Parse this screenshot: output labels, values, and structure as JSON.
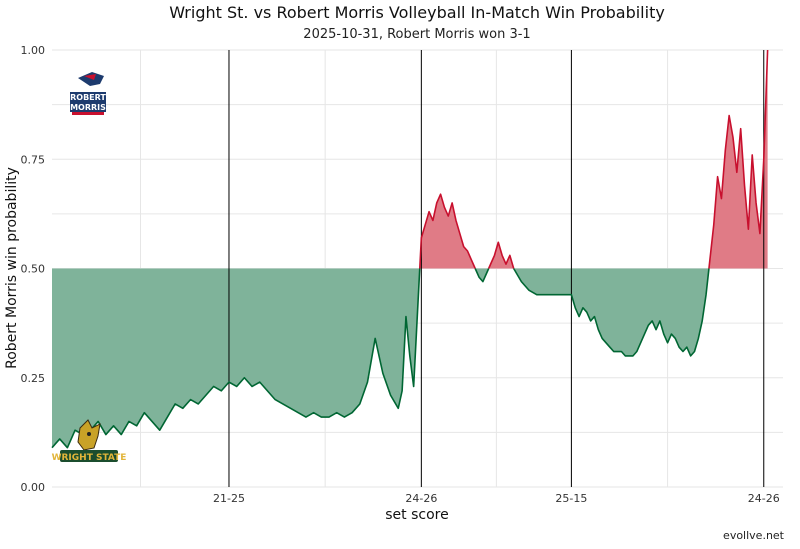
{
  "chart_data": {
    "type": "area",
    "title": "Wright St. vs Robert Morris Volleyball In-Match Win Probability",
    "subtitle": "2025-10-31, Robert Morris won 3-1",
    "xlabel": "set score",
    "ylabel": "Robert Morris win probability",
    "credit": "evollve.net",
    "ylim": [
      0,
      1
    ],
    "y_ticks": [
      "0.00",
      "0.25",
      "0.50",
      "0.75",
      "1.00"
    ],
    "y_tick_values": [
      0,
      0.25,
      0.5,
      0.75,
      1.0
    ],
    "x_range": [
      0,
      190
    ],
    "set_ends": [
      {
        "point": 46,
        "label": "21-25"
      },
      {
        "point": 96,
        "label": "24-26"
      },
      {
        "point": 135,
        "label": "25-15"
      },
      {
        "point": 185,
        "label": "24-26"
      }
    ],
    "baseline": 0.5,
    "logos": {
      "top": "Robert Morris",
      "bottom": "Wright State"
    },
    "colors": {
      "robert_morris": "#c8102e",
      "robert_morris_fill": "#e07b86",
      "wright_state": "#006633",
      "wright_state_fill": "#7fb39a"
    },
    "series": [
      {
        "values": [
          [
            0,
            0.09
          ],
          [
            2,
            0.11
          ],
          [
            4,
            0.09
          ],
          [
            6,
            0.13
          ],
          [
            8,
            0.12
          ],
          [
            10,
            0.13
          ],
          [
            12,
            0.15
          ],
          [
            14,
            0.12
          ],
          [
            16,
            0.14
          ],
          [
            18,
            0.12
          ],
          [
            20,
            0.15
          ],
          [
            22,
            0.14
          ],
          [
            24,
            0.17
          ],
          [
            26,
            0.15
          ],
          [
            28,
            0.13
          ],
          [
            30,
            0.16
          ],
          [
            32,
            0.19
          ],
          [
            34,
            0.18
          ],
          [
            36,
            0.2
          ],
          [
            38,
            0.19
          ],
          [
            40,
            0.21
          ],
          [
            42,
            0.23
          ],
          [
            44,
            0.22
          ],
          [
            46,
            0.24
          ],
          [
            48,
            0.23
          ],
          [
            50,
            0.25
          ],
          [
            52,
            0.23
          ],
          [
            54,
            0.24
          ],
          [
            56,
            0.22
          ],
          [
            58,
            0.2
          ],
          [
            60,
            0.19
          ],
          [
            62,
            0.18
          ],
          [
            64,
            0.17
          ],
          [
            66,
            0.16
          ],
          [
            68,
            0.17
          ],
          [
            70,
            0.16
          ],
          [
            72,
            0.16
          ],
          [
            74,
            0.17
          ],
          [
            76,
            0.16
          ],
          [
            78,
            0.17
          ],
          [
            80,
            0.19
          ],
          [
            82,
            0.24
          ],
          [
            84,
            0.34
          ],
          [
            86,
            0.26
          ],
          [
            88,
            0.21
          ],
          [
            90,
            0.18
          ],
          [
            91,
            0.22
          ],
          [
            92,
            0.39
          ],
          [
            93,
            0.3
          ],
          [
            94,
            0.23
          ],
          [
            95,
            0.4
          ],
          [
            96,
            0.57
          ],
          [
            97,
            0.6
          ],
          [
            98,
            0.63
          ],
          [
            99,
            0.61
          ],
          [
            100,
            0.65
          ],
          [
            101,
            0.67
          ],
          [
            102,
            0.64
          ],
          [
            103,
            0.62
          ],
          [
            104,
            0.65
          ],
          [
            105,
            0.61
          ],
          [
            106,
            0.58
          ],
          [
            107,
            0.55
          ],
          [
            108,
            0.54
          ],
          [
            109,
            0.52
          ],
          [
            110,
            0.5
          ],
          [
            111,
            0.48
          ],
          [
            112,
            0.47
          ],
          [
            113,
            0.49
          ],
          [
            114,
            0.51
          ],
          [
            115,
            0.53
          ],
          [
            116,
            0.56
          ],
          [
            117,
            0.53
          ],
          [
            118,
            0.51
          ],
          [
            119,
            0.53
          ],
          [
            120,
            0.5
          ],
          [
            122,
            0.47
          ],
          [
            124,
            0.45
          ],
          [
            126,
            0.44
          ],
          [
            128,
            0.44
          ],
          [
            130,
            0.44
          ],
          [
            132,
            0.44
          ],
          [
            134,
            0.44
          ],
          [
            135,
            0.44
          ],
          [
            136,
            0.41
          ],
          [
            137,
            0.39
          ],
          [
            138,
            0.41
          ],
          [
            139,
            0.4
          ],
          [
            140,
            0.38
          ],
          [
            141,
            0.39
          ],
          [
            142,
            0.36
          ],
          [
            143,
            0.34
          ],
          [
            144,
            0.33
          ],
          [
            145,
            0.32
          ],
          [
            146,
            0.31
          ],
          [
            147,
            0.31
          ],
          [
            148,
            0.31
          ],
          [
            149,
            0.3
          ],
          [
            150,
            0.3
          ],
          [
            151,
            0.3
          ],
          [
            152,
            0.31
          ],
          [
            153,
            0.33
          ],
          [
            154,
            0.35
          ],
          [
            155,
            0.37
          ],
          [
            156,
            0.38
          ],
          [
            157,
            0.36
          ],
          [
            158,
            0.38
          ],
          [
            159,
            0.35
          ],
          [
            160,
            0.33
          ],
          [
            161,
            0.35
          ],
          [
            162,
            0.34
          ],
          [
            163,
            0.32
          ],
          [
            164,
            0.31
          ],
          [
            165,
            0.32
          ],
          [
            166,
            0.3
          ],
          [
            167,
            0.31
          ],
          [
            168,
            0.34
          ],
          [
            169,
            0.38
          ],
          [
            170,
            0.44
          ],
          [
            171,
            0.52
          ],
          [
            172,
            0.6
          ],
          [
            173,
            0.71
          ],
          [
            174,
            0.66
          ],
          [
            175,
            0.77
          ],
          [
            176,
            0.85
          ],
          [
            177,
            0.8
          ],
          [
            178,
            0.72
          ],
          [
            179,
            0.82
          ],
          [
            180,
            0.69
          ],
          [
            181,
            0.59
          ],
          [
            182,
            0.76
          ],
          [
            183,
            0.65
          ],
          [
            184,
            0.58
          ],
          [
            185,
            0.75
          ],
          [
            186,
            1.0
          ]
        ]
      }
    ]
  }
}
